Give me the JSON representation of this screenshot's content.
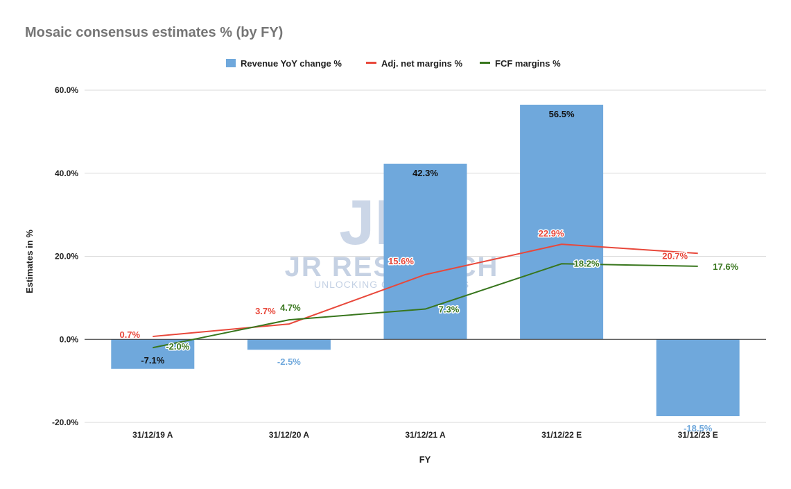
{
  "chart_data": {
    "type": "bar",
    "title": "Mosaic consensus estimates % (by FY)",
    "xlabel": "FY",
    "ylabel": "Estimates in %",
    "ylim": [
      -20,
      60
    ],
    "yticks": [
      "-20.0%",
      "0.0%",
      "20.0%",
      "40.0%",
      "60.0%"
    ],
    "ytick_values": [
      -20,
      0,
      20,
      40,
      60
    ],
    "grid": true,
    "legend_position": "top",
    "categories": [
      "31/12/19 A",
      "31/12/20 A",
      "31/12/21 A",
      "31/12/22 E",
      "31/12/23 E"
    ],
    "series": [
      {
        "name": "Revenue YoY change %",
        "kind": "bar",
        "color": "#6fa8dc",
        "values": [
          -7.1,
          -2.5,
          42.3,
          56.5,
          -18.5
        ],
        "labels": [
          "-7.1%",
          "-2.5%",
          "42.3%",
          "56.5%",
          "-18.5%"
        ]
      },
      {
        "name": "Adj. net margins %",
        "kind": "line",
        "color": "#e8483b",
        "values": [
          0.7,
          3.7,
          15.6,
          22.9,
          20.7
        ],
        "labels": [
          "0.7%",
          "3.7%",
          "15.6%",
          "22.9%",
          "20.7%"
        ]
      },
      {
        "name": "FCF margins %",
        "kind": "line",
        "color": "#38761d",
        "values": [
          -2.0,
          4.7,
          7.3,
          18.2,
          17.6
        ],
        "labels": [
          "-2.0%",
          "4.7%",
          "7.3%",
          "18.2%",
          "17.6%"
        ]
      }
    ]
  },
  "watermark": {
    "logo_text": "JR",
    "brand": "JR RESEARCH",
    "tagline": "UNLOCKING OPPORTUNITIES"
  }
}
